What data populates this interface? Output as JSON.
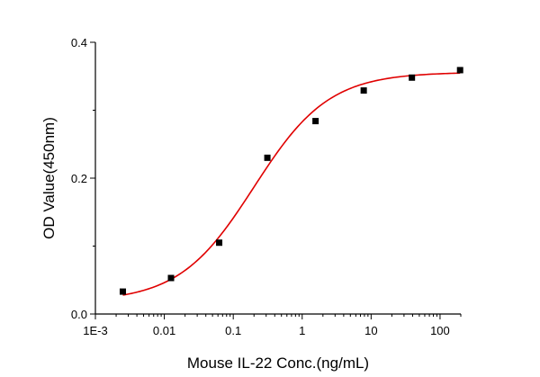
{
  "chart_data": {
    "type": "scatter",
    "title": "",
    "xlabel": "Mouse IL-22 Conc.(ng/mL)",
    "ylabel": "OD Value(450nm)",
    "x_scale": "log",
    "xlim": [
      0.001,
      200
    ],
    "ylim": [
      0.0,
      0.4
    ],
    "x_ticks": [
      "1E-3",
      "0.01",
      "0.1",
      "1",
      "10",
      "100"
    ],
    "y_ticks": [
      "0.0",
      "0.2",
      "0.4"
    ],
    "grid": false,
    "legend": "none",
    "marker_color": "#000000",
    "curve_color": "#e00000",
    "series": [
      {
        "x": [
          0.0025,
          0.0125,
          0.0625,
          0.3125,
          1.5625,
          7.8125,
          39.0625,
          195.3125
        ],
        "y": [
          0.033,
          0.053,
          0.105,
          0.23,
          0.284,
          0.329,
          0.348,
          0.359
        ]
      }
    ],
    "fit": {
      "type": "4PL",
      "bottom": 0.018,
      "top": 0.356,
      "ec50": 0.2,
      "hill": 0.8
    }
  }
}
